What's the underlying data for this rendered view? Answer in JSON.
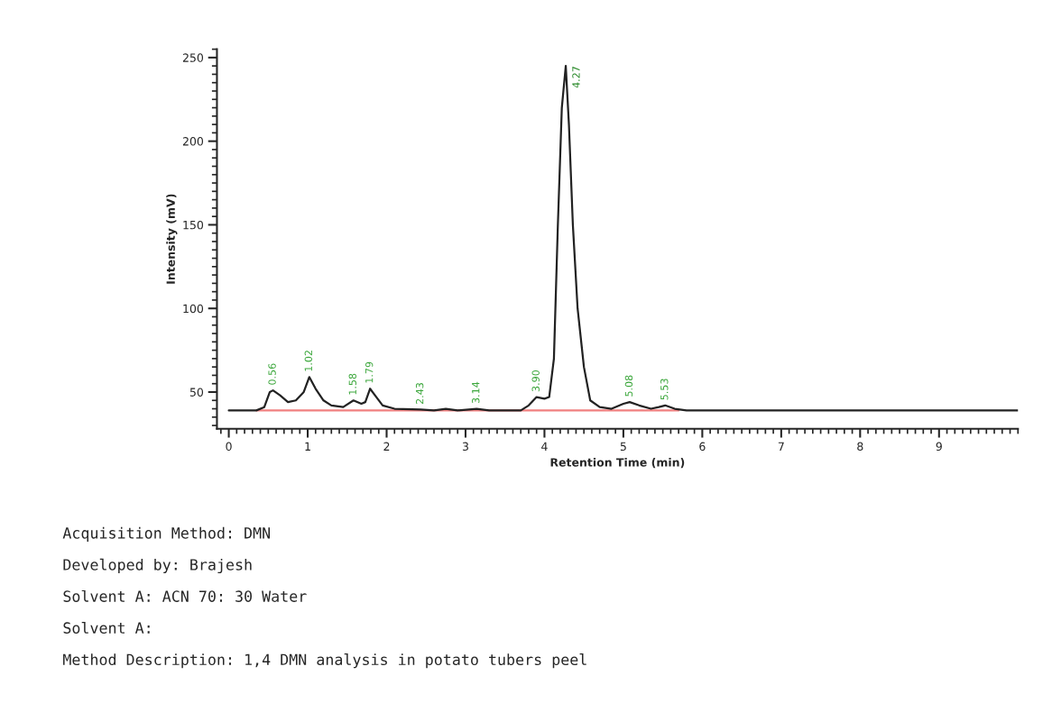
{
  "chart_data": {
    "type": "line",
    "xlabel": "Retention Time (min)",
    "ylabel": "Intensity (mV)",
    "xlim": [
      -0.15,
      10.0
    ],
    "xticks": [
      0,
      1,
      2,
      3,
      4,
      5,
      6,
      7,
      8,
      9
    ],
    "ylim": [
      28,
      255
    ],
    "yticks": [
      50,
      100,
      150,
      200,
      250
    ],
    "grid": false,
    "legend": false,
    "marker": "none",
    "line_style": "solid",
    "series": [
      {
        "color": "#222222",
        "x": [
          0,
          0.35,
          0.45,
          0.52,
          0.56,
          0.65,
          0.75,
          0.85,
          0.95,
          1.02,
          1.1,
          1.2,
          1.3,
          1.45,
          1.58,
          1.68,
          1.73,
          1.79,
          1.87,
          1.95,
          2.1,
          2.43,
          2.6,
          2.75,
          2.9,
          3.14,
          3.3,
          3.7,
          3.8,
          3.9,
          4.0,
          4.06,
          4.12,
          4.17,
          4.22,
          4.27,
          4.31,
          4.36,
          4.42,
          4.5,
          4.58,
          4.7,
          4.85,
          5.0,
          5.08,
          5.2,
          5.35,
          5.45,
          5.53,
          5.65,
          5.8,
          6.9,
          10.0
        ],
        "values": [
          39,
          39,
          41,
          50,
          51,
          48,
          44,
          45,
          50,
          59,
          52,
          45,
          42,
          41,
          45,
          43,
          44,
          52,
          47,
          42,
          40,
          39.5,
          39,
          40,
          39,
          40,
          39,
          39,
          42,
          47,
          46,
          47,
          70,
          150,
          220,
          245,
          210,
          150,
          100,
          65,
          45,
          41,
          40,
          43,
          44,
          42,
          40,
          41,
          42,
          40,
          39,
          39,
          39
        ]
      },
      {
        "color": "#f08080",
        "x": [
          0.35,
          5.7
        ],
        "values": [
          39,
          39
        ]
      }
    ],
    "annotations": [
      {
        "text": "0.56",
        "x": 0.56,
        "y": 51
      },
      {
        "text": "1.02",
        "x": 1.02,
        "y": 59
      },
      {
        "text": "1.58",
        "x": 1.58,
        "y": 45
      },
      {
        "text": "1.79",
        "x": 1.79,
        "y": 52
      },
      {
        "text": "2.43",
        "x": 2.43,
        "y": 39.5
      },
      {
        "text": "3.14",
        "x": 3.14,
        "y": 40
      },
      {
        "text": "3.90",
        "x": 3.9,
        "y": 47
      },
      {
        "text": "4.27",
        "x": 4.27,
        "y": 245
      },
      {
        "text": "5.08",
        "x": 5.08,
        "y": 44
      },
      {
        "text": "5.53",
        "x": 5.53,
        "y": 42
      },
      "Acquisition Method: DMN",
      "Developed by: Brajesh",
      "Solvent A: ACN 70: 30 Water",
      "Solvent A:",
      "Method Description: 1,4 DMN analysis in potato tubers peel"
    ]
  }
}
